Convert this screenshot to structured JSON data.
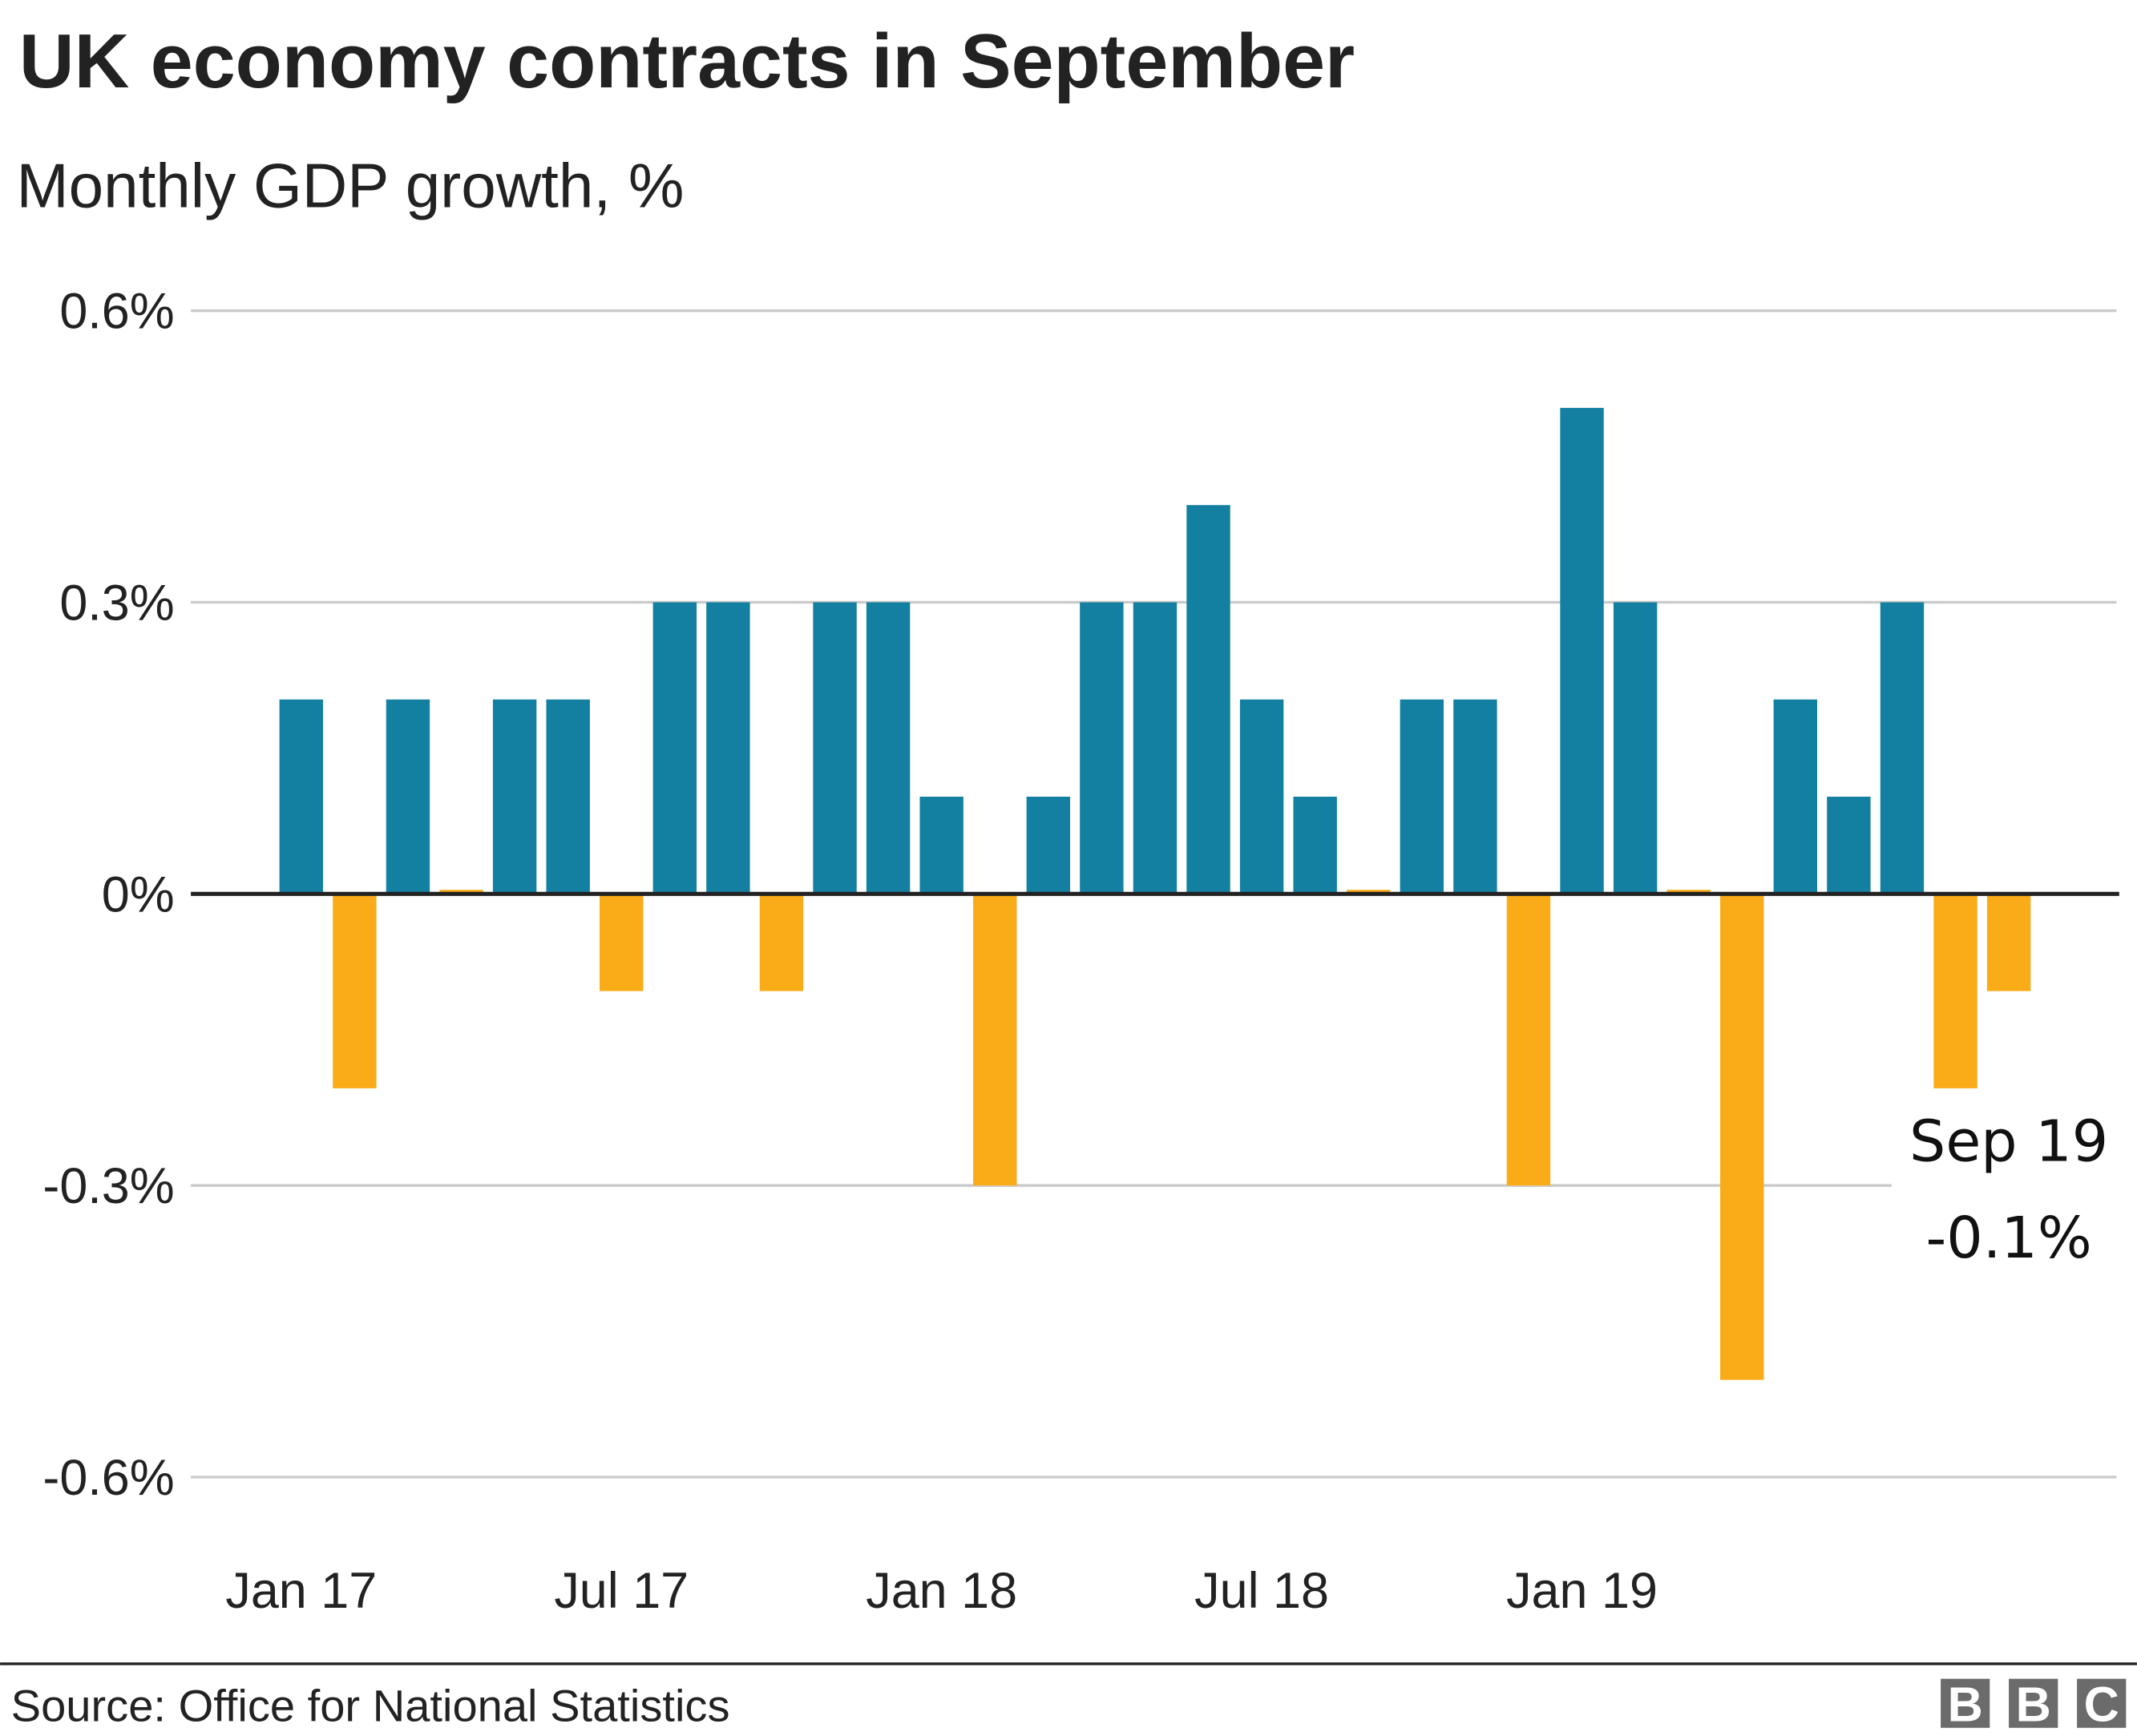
{
  "title": "UK economy contracts in September",
  "subtitle": "Monthly GDP growth, %",
  "source": "Source: Office for National Statistics",
  "logo": "BBC",
  "colors": {
    "positive": "#1380A1",
    "negative": "#FAAB18",
    "grid": "#cbcbcb",
    "axis": "#222222"
  },
  "chart_data": {
    "type": "bar",
    "title": "UK economy contracts in September",
    "subtitle": "Monthly GDP growth, %",
    "xlabel": "",
    "ylabel": "",
    "ylim": [
      -0.6,
      0.6
    ],
    "grid": true,
    "y_ticks": [
      0.6,
      0.3,
      0,
      -0.3,
      -0.6
    ],
    "y_tick_labels": [
      "0.6%",
      "0.3%",
      "0%",
      "-0.3%",
      "-0.6%"
    ],
    "x_tick_labels": [
      {
        "label": "Jan 17",
        "category": "Jan 17"
      },
      {
        "label": "Jul 17",
        "category": "Jul 17"
      },
      {
        "label": "Jan 18",
        "category": "Jan 18"
      },
      {
        "label": "Jul 18",
        "category": "Jul 18"
      },
      {
        "label": "Jan 19",
        "category": "Jan 19"
      }
    ],
    "categories": [
      "Jan 17",
      "Feb 17",
      "Mar 17",
      "Apr 17",
      "May 17",
      "Jun 17",
      "Jul 17",
      "Aug 17",
      "Sep 17",
      "Oct 17",
      "Nov 17",
      "Dec 17",
      "Jan 18",
      "Feb 18",
      "Mar 18",
      "Apr 18",
      "May 18",
      "Jun 18",
      "Jul 18",
      "Aug 18",
      "Sep 18",
      "Oct 18",
      "Nov 18",
      "Dec 18",
      "Jan 19",
      "Feb 19",
      "Mar 19",
      "Apr 19",
      "May 19",
      "Jun 19",
      "Jul 19",
      "Aug 19",
      "Sep 19"
    ],
    "values": [
      0.2,
      -0.2,
      0.2,
      0.0,
      0.2,
      0.2,
      -0.1,
      0.3,
      0.3,
      -0.1,
      0.3,
      0.3,
      0.1,
      -0.3,
      0.1,
      0.3,
      0.3,
      0.4,
      0.2,
      0.1,
      0.0,
      0.2,
      0.2,
      -0.3,
      0.5,
      0.3,
      0.0,
      -0.5,
      0.2,
      0.1,
      0.3,
      -0.2,
      -0.1
    ],
    "annotation": {
      "label": "Sep 19",
      "value": "-0.1%"
    }
  }
}
